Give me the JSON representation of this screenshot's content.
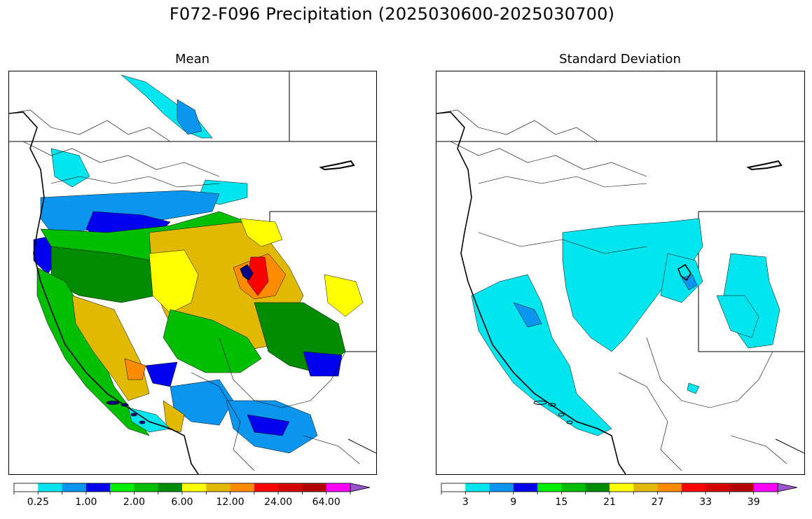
{
  "title": "F072-F096 Precipitation (2025030600-2025030700)",
  "panels": [
    {
      "title": "Mean",
      "colorbar": {
        "colors": [
          "#ffffff",
          "#00e5ee",
          "#0a96ee",
          "#0000ee",
          "#00ee00",
          "#00be00",
          "#008c00",
          "#ffff00",
          "#e1b900",
          "#ff8c00",
          "#ff0000",
          "#d20000",
          "#b40000",
          "#ff00ff",
          "#9955cc"
        ],
        "labels": [
          "0.25",
          "1.00",
          "2.00",
          "6.00",
          "12.00",
          "24.00",
          "64.00"
        ]
      }
    },
    {
      "title": "Standard Deviation",
      "colorbar": {
        "colors": [
          "#ffffff",
          "#00e5ee",
          "#0a96ee",
          "#0000ee",
          "#00ee00",
          "#00be00",
          "#008c00",
          "#ffff00",
          "#e1b900",
          "#ff8c00",
          "#ff0000",
          "#d20000",
          "#b40000",
          "#ff00ff",
          "#9955cc"
        ],
        "labels": [
          "3",
          "9",
          "15",
          "21",
          "27",
          "33",
          "39"
        ]
      }
    }
  ]
}
